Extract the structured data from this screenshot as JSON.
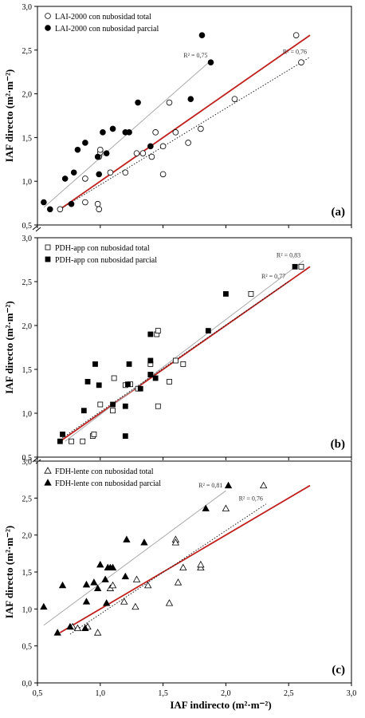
{
  "figure": {
    "x_axis_label": "IAF indirecto  (m²·m⁻²)"
  },
  "chart_data": [
    {
      "type": "scatter",
      "panel_label": "(a)",
      "ylabel": "IAF directo (m²·m⁻²)",
      "xlim": [
        0.5,
        3.0
      ],
      "ylim": [
        0.5,
        3.0
      ],
      "x_ticks": [
        "0,5",
        "1,0",
        "1,5",
        "2,0",
        "2,5",
        "3,0"
      ],
      "y_ticks": [
        "0,5",
        "1,0",
        "1,5",
        "2,0",
        "2,5",
        "3,0"
      ],
      "legend_position": "top-left",
      "series": [
        {
          "name": "LAI-2000 con nubosidad total",
          "marker": "circle-open",
          "points": [
            [
              0.68,
              0.68
            ],
            [
              0.88,
              0.76
            ],
            [
              0.88,
              1.03
            ],
            [
              0.98,
              0.74
            ],
            [
              0.99,
              0.68
            ],
            [
              0.99,
              1.28
            ],
            [
              1.0,
              1.33
            ],
            [
              1.0,
              1.36
            ],
            [
              1.08,
              1.1
            ],
            [
              1.2,
              1.1
            ],
            [
              1.29,
              1.32
            ],
            [
              1.34,
              1.32
            ],
            [
              1.41,
              1.28
            ],
            [
              1.44,
              1.56
            ],
            [
              1.5,
              1.08
            ],
            [
              1.5,
              1.4
            ],
            [
              1.55,
              1.9
            ],
            [
              1.6,
              1.56
            ],
            [
              1.7,
              1.44
            ],
            [
              1.8,
              1.6
            ],
            [
              2.07,
              1.94
            ],
            [
              2.56,
              2.67
            ],
            [
              2.6,
              2.36
            ]
          ]
        },
        {
          "name": "LAI-2000 con nubosidad parcial",
          "marker": "circle-filled",
          "points": [
            [
              0.55,
              0.76
            ],
            [
              0.6,
              0.68
            ],
            [
              0.72,
              1.03
            ],
            [
              0.77,
              0.74
            ],
            [
              0.79,
              1.1
            ],
            [
              0.82,
              1.36
            ],
            [
              0.88,
              1.44
            ],
            [
              0.98,
              1.28
            ],
            [
              0.99,
              1.08
            ],
            [
              1.02,
              1.56
            ],
            [
              1.05,
              1.32
            ],
            [
              1.1,
              1.6
            ],
            [
              1.2,
              1.56
            ],
            [
              1.23,
              1.56
            ],
            [
              1.3,
              1.9
            ],
            [
              1.4,
              1.4
            ],
            [
              1.72,
              1.94
            ],
            [
              1.81,
              2.67
            ],
            [
              1.88,
              2.36
            ]
          ]
        }
      ],
      "lines": [
        {
          "kind": "1:1",
          "color": "#c0211f",
          "x": [
            0.68,
            2.67
          ],
          "y": [
            0.68,
            2.67
          ]
        },
        {
          "kind": "fit-total",
          "style": "dotted",
          "x": [
            0.68,
            2.67
          ],
          "y": [
            0.68,
            2.42
          ],
          "r2": "R² = 0,76"
        },
        {
          "kind": "fit-parcial",
          "style": "solid-gray",
          "x": [
            0.55,
            1.88
          ],
          "y": [
            0.7,
            2.38
          ],
          "r2": "R² = 0,75"
        }
      ]
    },
    {
      "type": "scatter",
      "panel_label": "(b)",
      "ylabel": "IAF directo (m²·m⁻²)",
      "xlim": [
        0.5,
        3.0
      ],
      "ylim": [
        0.5,
        3.0
      ],
      "x_ticks": [
        "0,5",
        "1,0",
        "1,5",
        "2,0",
        "2,5",
        "3,0"
      ],
      "y_ticks": [
        "0,5",
        "1,0",
        "1,5",
        "2,0",
        "2,5",
        "3,0"
      ],
      "legend_position": "top-left",
      "series": [
        {
          "name": "PDH-app con nubosidad total",
          "marker": "square-open",
          "points": [
            [
              0.77,
              0.68
            ],
            [
              0.86,
              0.68
            ],
            [
              0.94,
              0.74
            ],
            [
              0.95,
              0.76
            ],
            [
              1.0,
              1.1
            ],
            [
              1.1,
              1.03
            ],
            [
              1.11,
              1.4
            ],
            [
              1.2,
              1.32
            ],
            [
              1.24,
              1.33
            ],
            [
              1.3,
              1.28
            ],
            [
              1.4,
              1.44
            ],
            [
              1.4,
              1.56
            ],
            [
              1.45,
              1.9
            ],
            [
              1.46,
              1.94
            ],
            [
              1.46,
              1.08
            ],
            [
              1.55,
              1.36
            ],
            [
              1.6,
              1.6
            ],
            [
              1.66,
              1.56
            ],
            [
              2.2,
              2.36
            ],
            [
              2.6,
              2.67
            ]
          ]
        },
        {
          "name": "PDH-app con nubosidad parcial",
          "marker": "square-filled",
          "points": [
            [
              0.68,
              0.68
            ],
            [
              0.7,
              0.76
            ],
            [
              0.87,
              1.03
            ],
            [
              0.9,
              1.36
            ],
            [
              0.96,
              1.56
            ],
            [
              0.99,
              1.32
            ],
            [
              1.1,
              1.1
            ],
            [
              1.2,
              0.74
            ],
            [
              1.2,
              1.08
            ],
            [
              1.22,
              1.33
            ],
            [
              1.23,
              1.56
            ],
            [
              1.32,
              1.28
            ],
            [
              1.4,
              1.44
            ],
            [
              1.4,
              1.9
            ],
            [
              1.4,
              1.6
            ],
            [
              1.44,
              1.4
            ],
            [
              1.86,
              1.94
            ],
            [
              2.0,
              2.36
            ],
            [
              2.55,
              2.67
            ]
          ]
        }
      ],
      "lines": [
        {
          "kind": "1:1",
          "color": "#c0211f",
          "x": [
            0.68,
            2.67
          ],
          "y": [
            0.68,
            2.67
          ]
        },
        {
          "kind": "fit-total",
          "style": "solid-gray",
          "x": [
            0.72,
            2.62
          ],
          "y": [
            0.68,
            2.74
          ],
          "r2": "R² = 0,83"
        },
        {
          "kind": "fit-parcial",
          "style": "dotted",
          "x": [
            0.68,
            2.5
          ],
          "y": [
            0.7,
            2.5
          ],
          "r2": "R² = 0,77"
        }
      ]
    },
    {
      "type": "scatter",
      "panel_label": "(c)",
      "ylabel": "IAF directo (m²·m⁻²)",
      "xlim": [
        0.5,
        3.0
      ],
      "ylim": [
        0.0,
        3.0
      ],
      "x_ticks": [
        "0,5",
        "1,0",
        "1,5",
        "2,0",
        "2,5",
        "3,0"
      ],
      "y_ticks": [
        "0,0",
        "0,5",
        "1,0",
        "1,5",
        "2,0",
        "2,5",
        "3,0"
      ],
      "legend_position": "top-left",
      "series": [
        {
          "name": "FDH-lente con nubosidad total",
          "marker": "triangle-open",
          "points": [
            [
              0.78,
              0.76
            ],
            [
              0.82,
              0.74
            ],
            [
              0.9,
              0.76
            ],
            [
              0.98,
              0.68
            ],
            [
              1.08,
              1.28
            ],
            [
              1.1,
              1.32
            ],
            [
              1.19,
              1.1
            ],
            [
              1.28,
              1.03
            ],
            [
              1.29,
              1.4
            ],
            [
              1.38,
              1.32
            ],
            [
              1.55,
              1.08
            ],
            [
              1.6,
              1.94
            ],
            [
              1.6,
              1.9
            ],
            [
              1.62,
              1.36
            ],
            [
              1.66,
              1.56
            ],
            [
              1.8,
              1.56
            ],
            [
              1.8,
              1.6
            ],
            [
              2.0,
              2.36
            ],
            [
              2.3,
              2.67
            ]
          ]
        },
        {
          "name": "FDH-lente con nubosidad parcial",
          "marker": "triangle-filled",
          "points": [
            [
              0.55,
              1.03
            ],
            [
              0.66,
              0.68
            ],
            [
              0.7,
              1.32
            ],
            [
              0.76,
              0.76
            ],
            [
              0.88,
              0.74
            ],
            [
              0.89,
              1.1
            ],
            [
              0.89,
              1.33
            ],
            [
              0.95,
              1.36
            ],
            [
              0.98,
              1.28
            ],
            [
              1.0,
              1.6
            ],
            [
              1.04,
              1.4
            ],
            [
              1.05,
              1.08
            ],
            [
              1.06,
              1.56
            ],
            [
              1.08,
              1.56
            ],
            [
              1.1,
              1.56
            ],
            [
              1.2,
              1.44
            ],
            [
              1.21,
              1.94
            ],
            [
              1.35,
              1.9
            ],
            [
              1.84,
              2.36
            ],
            [
              2.02,
              2.67
            ]
          ]
        }
      ],
      "lines": [
        {
          "kind": "1:1",
          "color": "#c0211f",
          "x": [
            0.68,
            2.67
          ],
          "y": [
            0.68,
            2.67
          ]
        },
        {
          "kind": "fit-parcial",
          "style": "solid-gray",
          "x": [
            0.55,
            2.0
          ],
          "y": [
            0.78,
            2.6
          ],
          "r2": "R² = 0,81"
        },
        {
          "kind": "fit-total",
          "style": "dotted",
          "x": [
            0.76,
            2.32
          ],
          "y": [
            0.66,
            2.42
          ],
          "r2": "R² = 0,76"
        }
      ]
    }
  ]
}
